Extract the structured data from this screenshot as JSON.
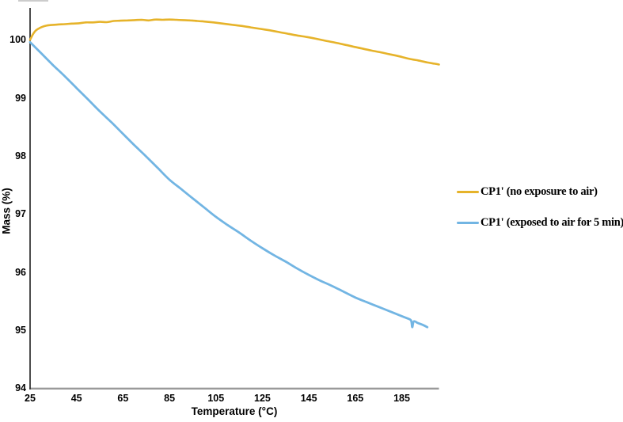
{
  "chart_data": {
    "type": "line",
    "title": "",
    "xlabel": "Temperature (°C)",
    "ylabel": "Mass (%)",
    "xlim": [
      25,
      201
    ],
    "ylim": [
      94,
      100.55
    ],
    "x_ticks": [
      25,
      45,
      65,
      85,
      105,
      125,
      145,
      165,
      185
    ],
    "y_ticks": [
      94,
      95,
      96,
      97,
      98,
      99,
      100
    ],
    "grid": false,
    "legend_position": "right-outside",
    "axis_colors": {
      "y_axis": "#1f1f1f",
      "x_axis": "#9a9a9a"
    },
    "series": [
      {
        "name": "CP1' (no exposure to air)",
        "color": "#E6B32A",
        "points": [
          [
            25,
            100.0
          ],
          [
            25.6,
            100.05
          ],
          [
            26.3,
            100.1
          ],
          [
            27.2,
            100.15
          ],
          [
            28.5,
            100.19
          ],
          [
            30,
            100.22
          ],
          [
            32,
            100.245
          ],
          [
            34,
            100.255
          ],
          [
            37,
            100.265
          ],
          [
            40,
            100.27
          ],
          [
            43,
            100.28
          ],
          [
            46,
            100.285
          ],
          [
            49,
            100.3
          ],
          [
            52,
            100.3
          ],
          [
            55,
            100.31
          ],
          [
            58,
            100.305
          ],
          [
            61,
            100.325
          ],
          [
            64,
            100.33
          ],
          [
            67,
            100.335
          ],
          [
            70,
            100.34
          ],
          [
            73,
            100.345
          ],
          [
            76,
            100.335
          ],
          [
            79,
            100.35
          ],
          [
            82,
            100.345
          ],
          [
            85,
            100.35
          ],
          [
            88,
            100.345
          ],
          [
            91,
            100.34
          ],
          [
            94,
            100.335
          ],
          [
            97,
            100.325
          ],
          [
            100,
            100.315
          ],
          [
            104,
            100.3
          ],
          [
            108,
            100.28
          ],
          [
            112,
            100.26
          ],
          [
            116,
            100.24
          ],
          [
            120,
            100.215
          ],
          [
            124,
            100.19
          ],
          [
            128,
            100.165
          ],
          [
            132,
            100.135
          ],
          [
            136,
            100.105
          ],
          [
            140,
            100.075
          ],
          [
            144,
            100.05
          ],
          [
            148,
            100.02
          ],
          [
            152,
            99.985
          ],
          [
            156,
            99.955
          ],
          [
            160,
            99.92
          ],
          [
            164,
            99.885
          ],
          [
            168,
            99.85
          ],
          [
            172,
            99.815
          ],
          [
            176,
            99.785
          ],
          [
            180,
            99.75
          ],
          [
            184,
            99.715
          ],
          [
            188,
            99.675
          ],
          [
            192,
            99.645
          ],
          [
            196,
            99.61
          ],
          [
            199,
            99.59
          ],
          [
            201,
            99.575
          ]
        ]
      },
      {
        "name": "CP1' (exposed to air for 5 min)",
        "color": "#72B5E3",
        "points": [
          [
            25,
            99.96
          ],
          [
            30,
            99.76
          ],
          [
            35,
            99.56
          ],
          [
            40,
            99.37
          ],
          [
            45,
            99.17
          ],
          [
            50,
            98.97
          ],
          [
            55,
            98.77
          ],
          [
            60,
            98.58
          ],
          [
            65,
            98.38
          ],
          [
            70,
            98.18
          ],
          [
            75,
            97.99
          ],
          [
            80,
            97.79
          ],
          [
            85,
            97.59
          ],
          [
            90,
            97.43
          ],
          [
            95,
            97.27
          ],
          [
            100,
            97.11
          ],
          [
            105,
            96.95
          ],
          [
            110,
            96.81
          ],
          [
            115,
            96.68
          ],
          [
            120,
            96.54
          ],
          [
            125,
            96.41
          ],
          [
            130,
            96.29
          ],
          [
            135,
            96.18
          ],
          [
            140,
            96.06
          ],
          [
            145,
            95.95
          ],
          [
            150,
            95.85
          ],
          [
            155,
            95.76
          ],
          [
            160,
            95.66
          ],
          [
            165,
            95.56
          ],
          [
            170,
            95.48
          ],
          [
            175,
            95.4
          ],
          [
            180,
            95.32
          ],
          [
            185,
            95.24
          ],
          [
            187.5,
            95.2
          ],
          [
            189,
            95.165
          ],
          [
            189.5,
            95.05
          ],
          [
            190.2,
            95.15
          ],
          [
            192,
            95.12
          ],
          [
            194,
            95.09
          ],
          [
            196,
            95.05
          ]
        ]
      }
    ]
  }
}
